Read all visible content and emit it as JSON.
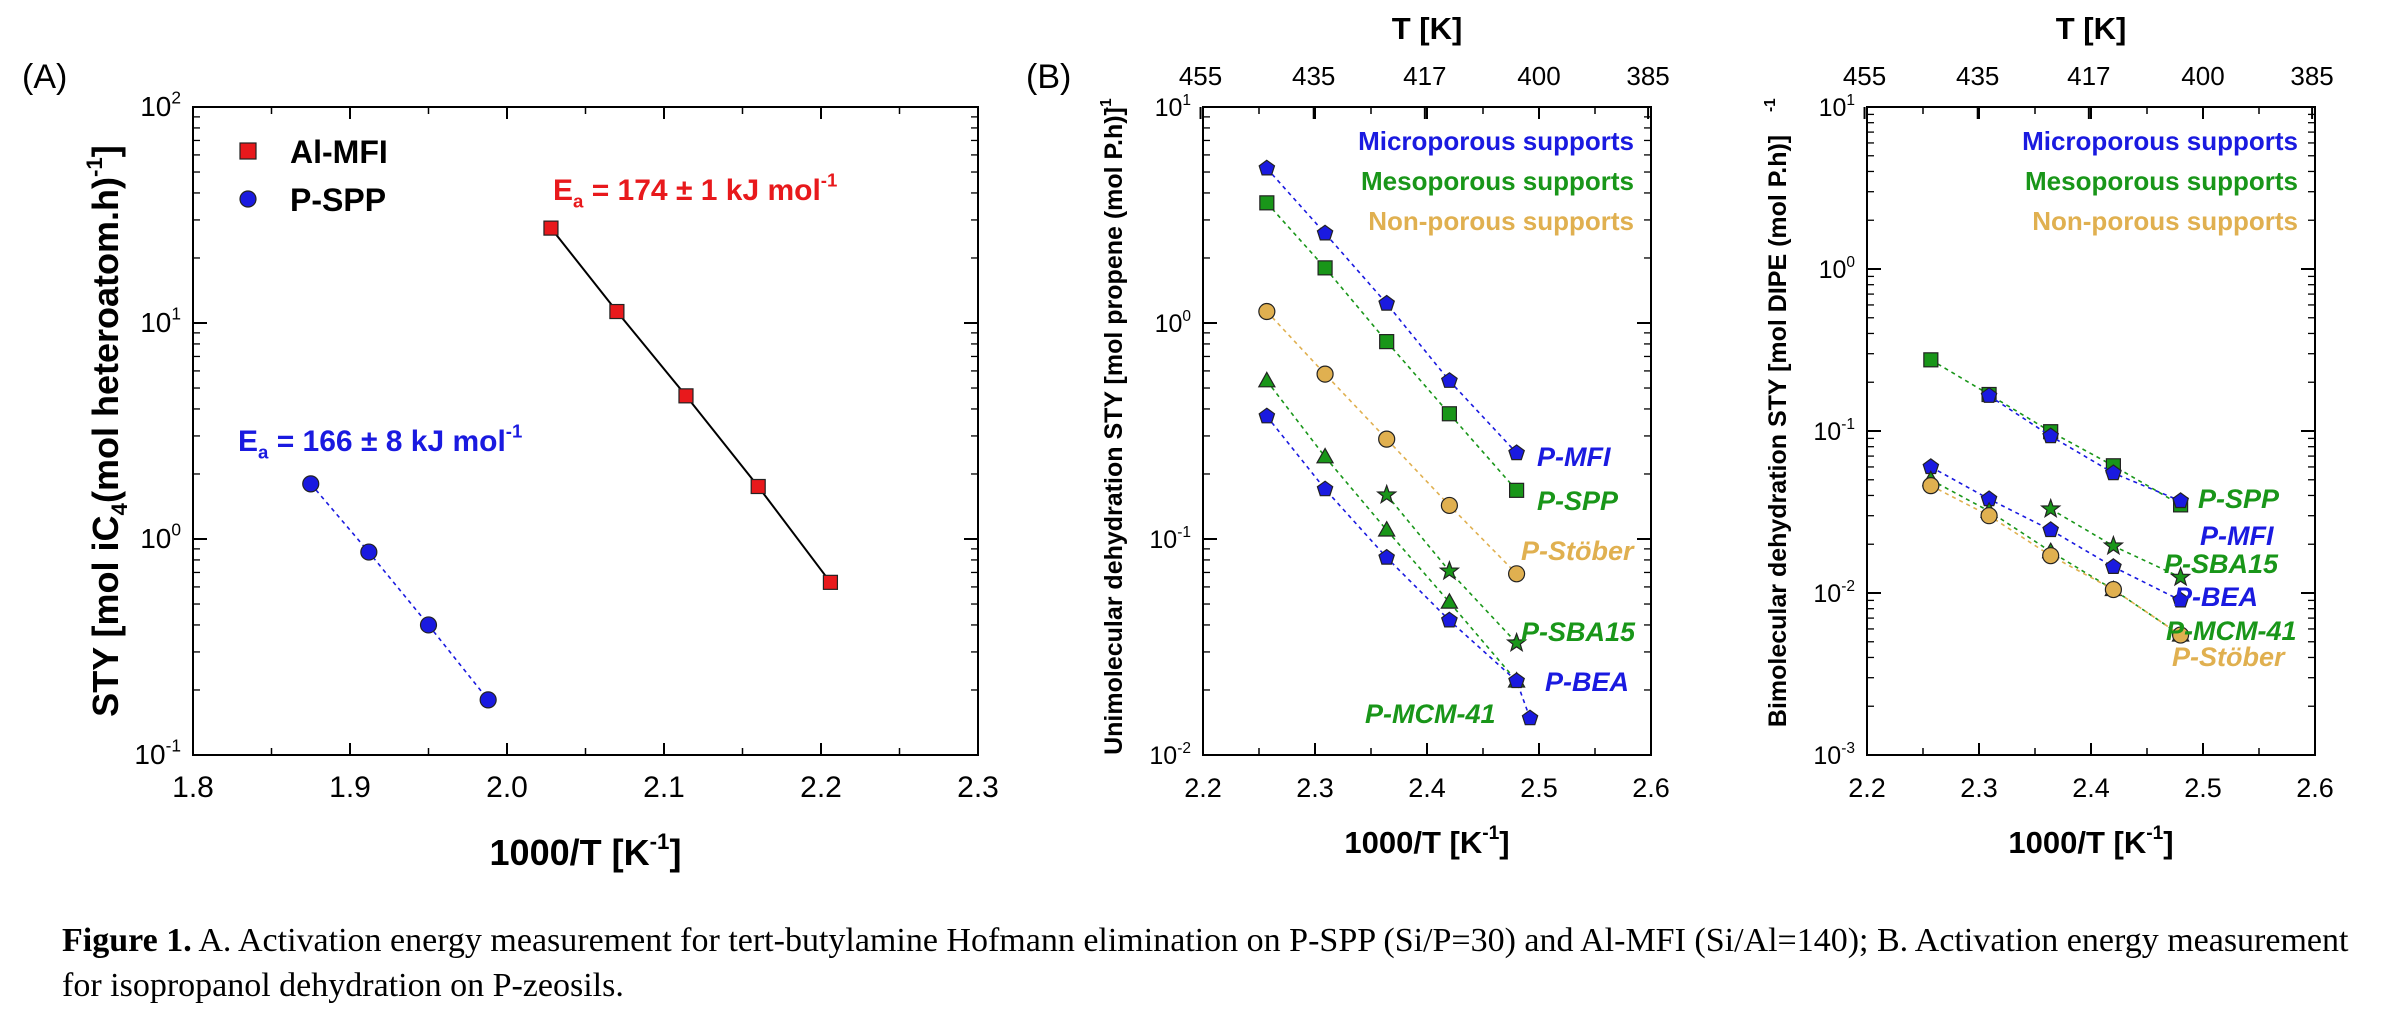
{
  "panels": {
    "A": "(A)",
    "B": "(B)"
  },
  "caption": {
    "label": "Figure 1.",
    "text": "A. Activation energy measurement for tert-butylamine Hofmann elimination on P-SPP (Si/P=30) and Al-MFI (Si/Al=140);  B. Activation energy measurement for isopropanol dehydration on P-zeosils."
  },
  "chart_data": [
    {
      "id": "A",
      "type": "scatter",
      "scale_y": "log",
      "xlabel": "1000/T [K⁻¹]",
      "ylabel": "STY [mol iC₄(mol heteroatom.h)⁻¹]",
      "xlim": [
        1.8,
        2.3
      ],
      "ylim": [
        0.1,
        100
      ],
      "xticks": [
        1.8,
        1.9,
        2.0,
        2.1,
        2.2,
        2.3
      ],
      "xtick_labels": [
        "1.8",
        "1.9",
        "2.0",
        "2.1",
        "2.2",
        "2.3"
      ],
      "legend_position": "top-left",
      "series": [
        {
          "name": "Al-MFI",
          "color": "#e8191c",
          "marker": "square",
          "line": "#000000",
          "dash": false,
          "x": [
            2.028,
            2.07,
            2.114,
            2.16,
            2.206
          ],
          "y": [
            27.5,
            11.3,
            4.6,
            1.75,
            0.63
          ]
        },
        {
          "name": "P-SPP",
          "color": "#1a1ae0",
          "marker": "circle",
          "line": "#1a1ae0",
          "dash": true,
          "x": [
            1.875,
            1.912,
            1.95,
            1.988
          ],
          "y": [
            1.8,
            0.87,
            0.4,
            0.18
          ]
        }
      ],
      "annotations": [
        {
          "text": "E",
          "sub": "a",
          "rest": " = 174 ± 1 kJ mol",
          "sup": "-1",
          "color": "#e8191c"
        },
        {
          "text": "E",
          "sub": "a",
          "rest": " = 166 ± 8 kJ mol",
          "sup": "-1",
          "color": "#1a1ae0"
        }
      ]
    },
    {
      "id": "B1",
      "type": "scatter",
      "scale_y": "log",
      "xlabel": "1000/T [K⁻¹]",
      "ylabel": "Unimolecular dehydration STY [mol propene (mol P.h)⁻¹]",
      "top_axis_label": "T [K]",
      "top_ticks": [
        "455",
        "435",
        "417",
        "400",
        "385"
      ],
      "xlim": [
        2.2,
        2.6
      ],
      "ylim": [
        0.01,
        10
      ],
      "xticks": [
        2.2,
        2.3,
        2.4,
        2.5,
        2.6
      ],
      "xtick_labels": [
        "2.2",
        "2.3",
        "2.4",
        "2.5",
        "2.6"
      ],
      "legend_text": [
        "Microporous supports",
        "Mesoporous supports",
        "Non-porous supports"
      ],
      "series": [
        {
          "name": "P-MFI",
          "color": "#1a1ae0",
          "marker": "pentagon",
          "x": [
            2.257,
            2.309,
            2.364,
            2.42,
            2.48
          ],
          "y": [
            5.2,
            2.6,
            1.23,
            0.54,
            0.25
          ]
        },
        {
          "name": "P-SPP",
          "color": "#199619",
          "marker": "square",
          "x": [
            2.257,
            2.309,
            2.364,
            2.42,
            2.48
          ],
          "y": [
            3.6,
            1.8,
            0.82,
            0.38,
            0.168
          ]
        },
        {
          "name": "P-Stöber",
          "color": "#e0b050",
          "marker": "circle",
          "x": [
            2.257,
            2.309,
            2.364,
            2.42,
            2.48
          ],
          "y": [
            1.13,
            0.58,
            0.29,
            0.143,
            0.069
          ]
        },
        {
          "name": "P-SBA15",
          "color": "#199619",
          "marker": "star",
          "x": [
            2.364,
            2.42,
            2.48
          ],
          "y": [
            0.16,
            0.071,
            0.033
          ]
        },
        {
          "name": "P-MCM-41",
          "color": "#199619",
          "marker": "triangle",
          "x": [
            2.257,
            2.309,
            2.364,
            2.42,
            2.48
          ],
          "y": [
            0.54,
            0.24,
            0.11,
            0.051,
            0.022
          ]
        },
        {
          "name": "P-BEA",
          "color": "#1a1ae0",
          "marker": "pentagon",
          "x": [
            2.257,
            2.309,
            2.364,
            2.42,
            2.48,
            2.492
          ],
          "y": [
            0.37,
            0.17,
            0.082,
            0.042,
            0.022,
            0.0148
          ]
        }
      ]
    },
    {
      "id": "B2",
      "type": "scatter",
      "scale_y": "log",
      "xlabel": "1000/T [K⁻¹]",
      "ylabel": "Bimolecular dehydration STY [mol DIPE (mol P.h)⁻¹]",
      "top_axis_label": "T [K]",
      "top_ticks": [
        "455",
        "435",
        "417",
        "400",
        "385"
      ],
      "xlim": [
        2.2,
        2.6
      ],
      "ylim": [
        0.001,
        10
      ],
      "xticks": [
        2.2,
        2.3,
        2.4,
        2.5,
        2.6
      ],
      "xtick_labels": [
        "2.2",
        "2.3",
        "2.4",
        "2.5",
        "2.6"
      ],
      "legend_text": [
        "Microporous supports",
        "Mesoporous supports",
        "Non-porous supports"
      ],
      "series": [
        {
          "name": "P-SPP",
          "color": "#199619",
          "marker": "square",
          "x": [
            2.257,
            2.309,
            2.364,
            2.42,
            2.48
          ],
          "y": [
            0.275,
            0.168,
            0.099,
            0.061,
            0.035
          ]
        },
        {
          "name": "P-MFI",
          "color": "#1a1ae0",
          "marker": "pentagon",
          "x": [
            2.309,
            2.364,
            2.42,
            2.48
          ],
          "y": [
            0.165,
            0.093,
            0.055,
            0.037
          ]
        },
        {
          "name": "P-SBA15",
          "color": "#199619",
          "marker": "star",
          "x": [
            2.364,
            2.42,
            2.48
          ],
          "y": [
            0.033,
            0.0195,
            0.0125
          ]
        },
        {
          "name": "P-BEA",
          "color": "#1a1ae0",
          "marker": "pentagon",
          "x": [
            2.257,
            2.309,
            2.364,
            2.42,
            2.48
          ],
          "y": [
            0.06,
            0.038,
            0.0245,
            0.0145,
            0.009
          ]
        },
        {
          "name": "P-MCM-41",
          "color": "#199619",
          "marker": "triangle",
          "x": [
            2.257,
            2.309,
            2.364,
            2.42,
            2.48
          ],
          "y": [
            0.05,
            0.032,
            0.018,
            0.0105,
            0.0055
          ]
        },
        {
          "name": "P-Stöber",
          "color": "#e0b050",
          "marker": "circle",
          "x": [
            2.257,
            2.309,
            2.364,
            2.42,
            2.48
          ],
          "y": [
            0.046,
            0.03,
            0.017,
            0.0105,
            0.0055
          ]
        }
      ]
    }
  ]
}
